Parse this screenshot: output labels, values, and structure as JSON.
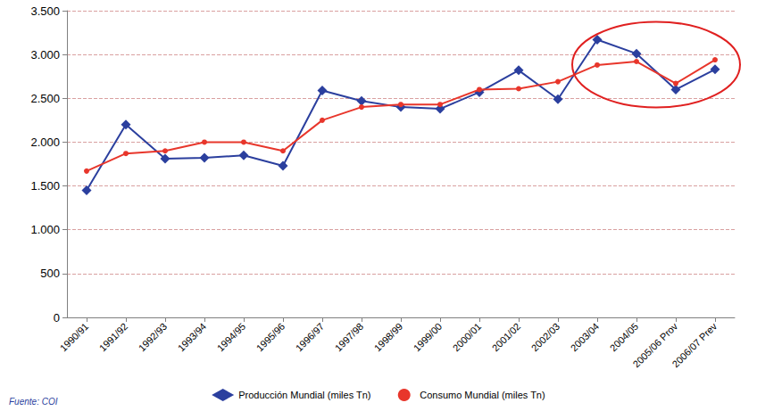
{
  "chart_data": {
    "type": "line",
    "categories": [
      "1990/91",
      "1991/92",
      "1992/93",
      "1993/94",
      "1994/95",
      "1995/96",
      "1996/97",
      "1997/98",
      "1998/99",
      "1999/00",
      "2000/01",
      "2001/02",
      "2002/03",
      "2003/04",
      "2004/05",
      "2005/06 Prov",
      "2006/07 Prev"
    ],
    "series": [
      {
        "name": "Producción Mundial (miles Tn)",
        "color": "#2b3f9e",
        "marker": "diamond",
        "values": [
          1450,
          2200,
          1810,
          1820,
          1850,
          1730,
          2590,
          2470,
          2400,
          2380,
          2570,
          2820,
          2490,
          3170,
          3010,
          2600,
          2830
        ]
      },
      {
        "name": "Consumo Mundial (miles Tn)",
        "color": "#e8362b",
        "marker": "circle",
        "values": [
          1670,
          1870,
          1900,
          2000,
          2000,
          1900,
          2250,
          2400,
          2430,
          2430,
          2600,
          2610,
          2690,
          2880,
          2920,
          2670,
          2940
        ]
      }
    ],
    "ylim": [
      0,
      3500
    ],
    "yticks": [
      0,
      500,
      {
        "value": 1000,
        "label": "1.000"
      },
      {
        "value": 1500,
        "label": "1.500"
      },
      {
        "value": 2000,
        "label": "2.000"
      },
      {
        "value": 2500,
        "label": "2.500"
      },
      {
        "value": 3000,
        "label": "3.000"
      },
      {
        "value": 3500,
        "label": "3.500"
      }
    ],
    "grid": true,
    "legend": "bottom",
    "source": "Fuente: COI"
  }
}
